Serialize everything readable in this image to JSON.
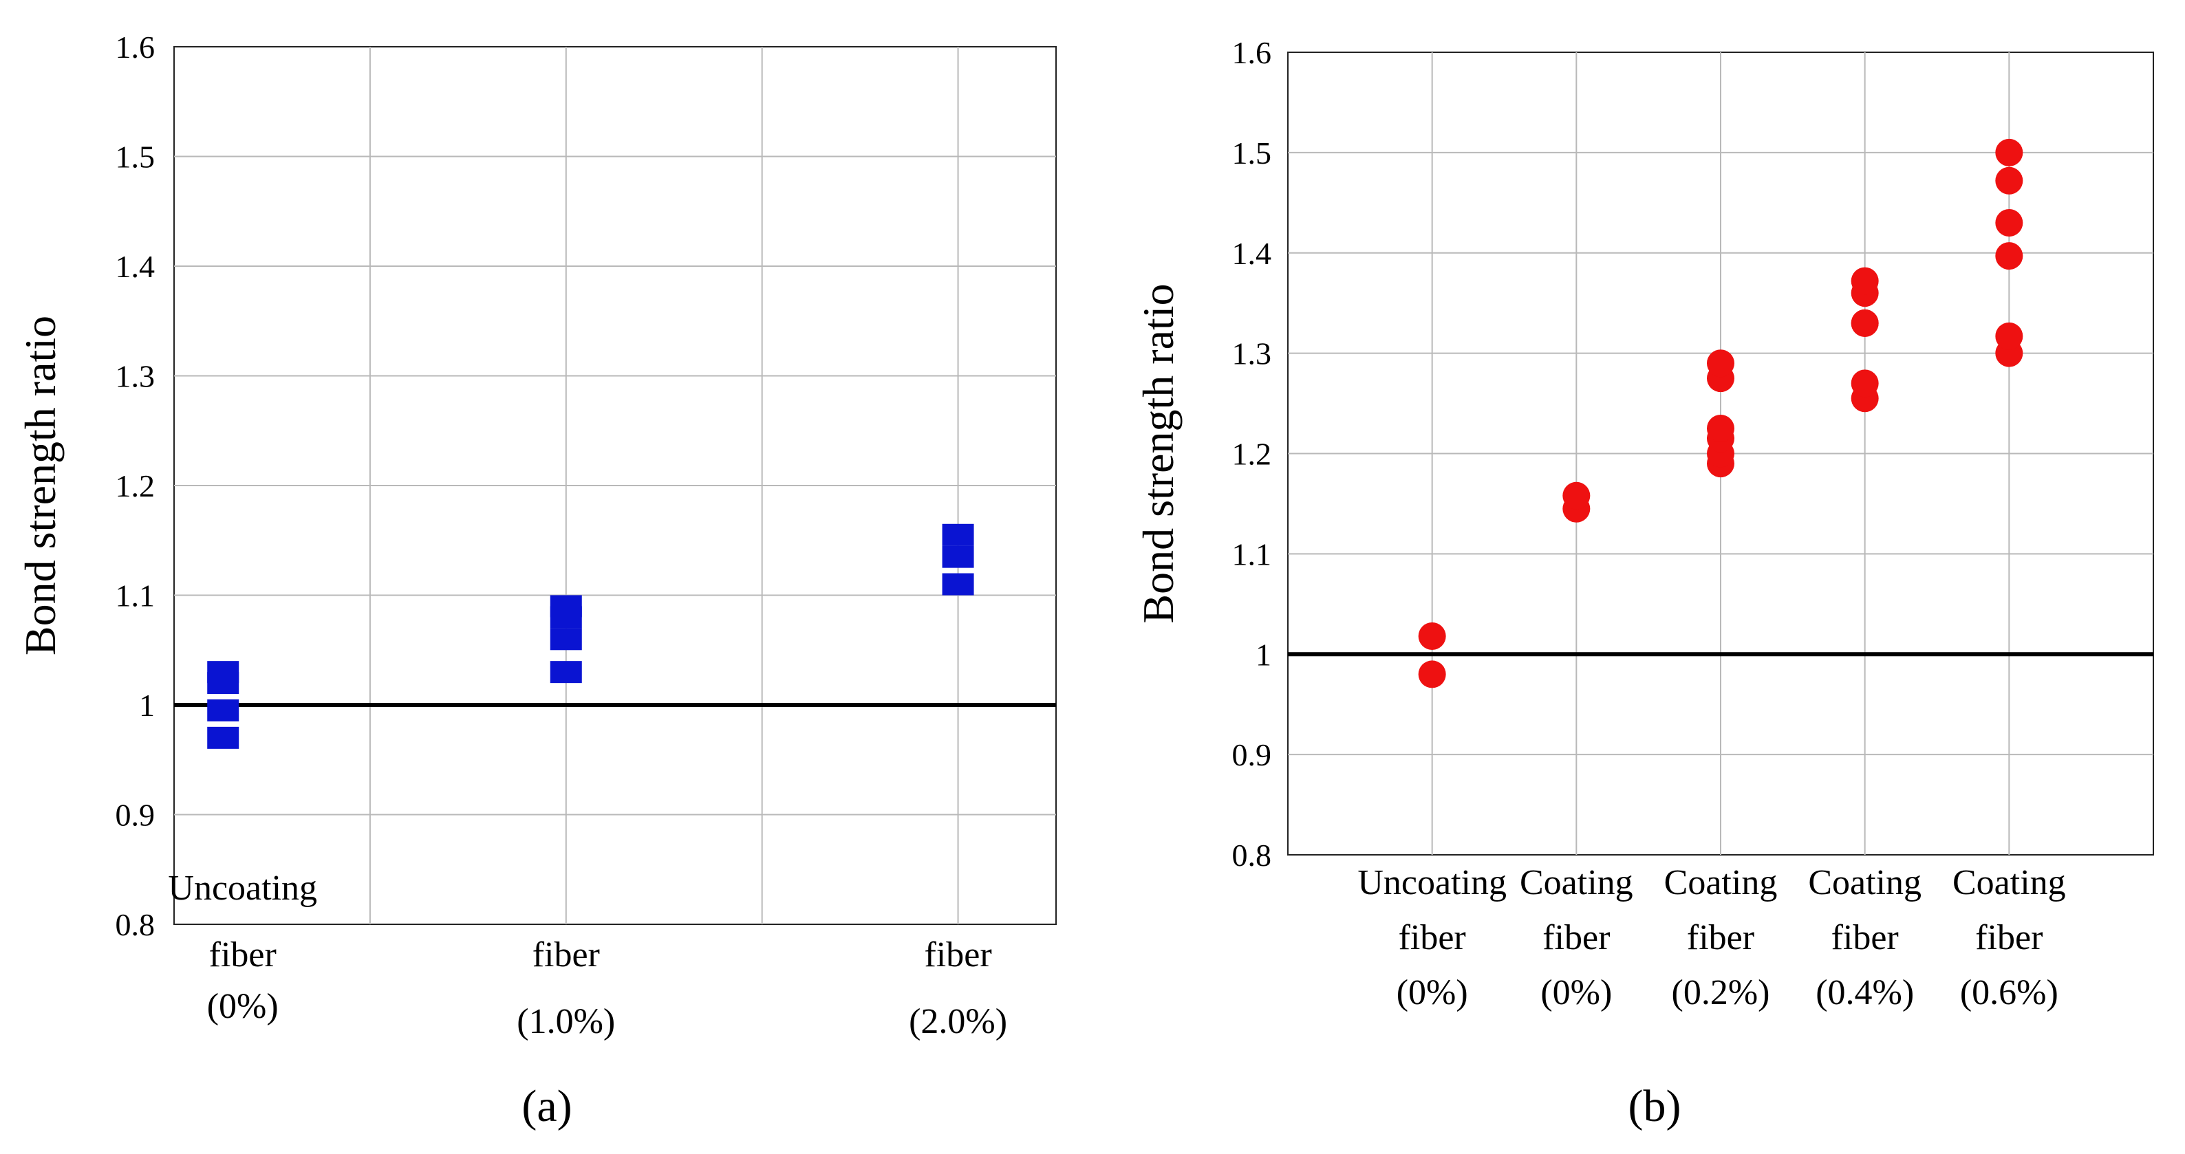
{
  "chart_data": [
    {
      "type": "scatter",
      "marker": "square",
      "color": "#0a14d2",
      "panel_label": "(a)",
      "ylabel": "Bond strength ratio",
      "ylim": [
        0.8,
        1.6
      ],
      "yticks": [
        "0.8",
        "0.9",
        "1",
        "1.1",
        "1.2",
        "1.3",
        "1.4",
        "1.5",
        "1.6"
      ],
      "xlim": [
        0,
        4.5
      ],
      "categories": [
        {
          "x": 0.35,
          "lines": [
            "Uncoating",
            "fiber",
            "(0%)"
          ]
        },
        {
          "x": 2.0,
          "lines": [
            "fiber",
            "(1.0%)"
          ]
        },
        {
          "x": 4.0,
          "lines": [
            "fiber",
            "(2.0%)"
          ]
        }
      ],
      "x": [
        0.25,
        0.25,
        0.25,
        0.25,
        2.0,
        2.0,
        2.0,
        2.0,
        4.0,
        4.0,
        4.0
      ],
      "y": [
        0.97,
        0.995,
        1.02,
        1.03,
        1.03,
        1.06,
        1.08,
        1.09,
        1.11,
        1.135,
        1.155
      ],
      "reference_line": 1.0,
      "grid": true
    },
    {
      "type": "scatter",
      "marker": "circle",
      "color": "#ee1111",
      "panel_label": "(b)",
      "ylabel": "Bond strength ratio",
      "ylim": [
        0.8,
        1.6
      ],
      "yticks": [
        "0.8",
        "0.9",
        "1",
        "1.1",
        "1.2",
        "1.3",
        "1.4",
        "1.5",
        "1.6"
      ],
      "xlim": [
        0,
        6
      ],
      "categories": [
        {
          "x": 1,
          "lines": [
            "Uncoating",
            "fiber",
            "(0%)"
          ]
        },
        {
          "x": 2,
          "lines": [
            "Coating",
            "fiber",
            "(0%)"
          ]
        },
        {
          "x": 3,
          "lines": [
            "Coating",
            "fiber",
            "(0.2%)"
          ]
        },
        {
          "x": 4,
          "lines": [
            "Coating",
            "fiber",
            "(0.4%)"
          ]
        },
        {
          "x": 5,
          "lines": [
            "Coating",
            "fiber",
            "(0.6%)"
          ]
        }
      ],
      "x": [
        1,
        1,
        2,
        2,
        3,
        3,
        3,
        3,
        3,
        3,
        4,
        4,
        4,
        4,
        4,
        4,
        5,
        5,
        5,
        5,
        5,
        5
      ],
      "y": [
        0.98,
        1.018,
        1.145,
        1.158,
        1.19,
        1.2,
        1.215,
        1.225,
        1.275,
        1.29,
        1.255,
        1.27,
        1.33,
        1.36,
        1.372,
        1.33,
        1.3,
        1.317,
        1.397,
        1.43,
        1.472,
        1.5
      ],
      "reference_line": 1.0,
      "grid": true
    }
  ]
}
